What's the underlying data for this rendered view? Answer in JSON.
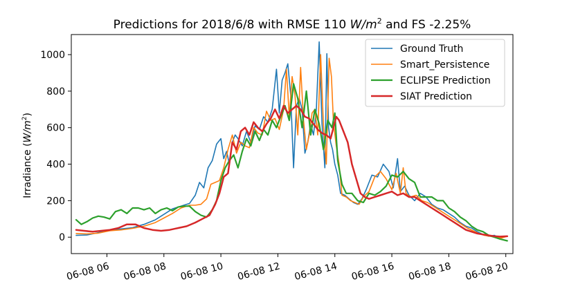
{
  "chart_data": {
    "type": "line",
    "title_parts": [
      "Predictions for 2018/6/8 with RMSE 110 ",
      "W/m",
      "2",
      " and FS -2.25%"
    ],
    "ylabel_parts": [
      "Irradiance (",
      "W/m",
      "2",
      ")"
    ],
    "xlabel": "",
    "x_unit": "hour of day (06-08)",
    "xlim": [
      4.75,
      20.25
    ],
    "ylim": [
      -90,
      1110
    ],
    "xticks": [
      {
        "value": 6,
        "label": "06-08 06"
      },
      {
        "value": 8,
        "label": "06-08 08"
      },
      {
        "value": 10,
        "label": "06-08 10"
      },
      {
        "value": 12,
        "label": "06-08 12"
      },
      {
        "value": 14,
        "label": "06-08 14"
      },
      {
        "value": 16,
        "label": "06-08 16"
      },
      {
        "value": 18,
        "label": "06-08 18"
      },
      {
        "value": 20,
        "label": "06-08 20"
      }
    ],
    "yticks": [
      {
        "value": 0,
        "label": "0"
      },
      {
        "value": 200,
        "label": "200"
      },
      {
        "value": 400,
        "label": "400"
      },
      {
        "value": 600,
        "label": "600"
      },
      {
        "value": 800,
        "label": "800"
      },
      {
        "value": 1000,
        "label": "1000"
      }
    ],
    "grid": false,
    "legend_position": "top-right",
    "series": [
      {
        "name": "Ground Truth",
        "color": "#1f77b4",
        "width": 1.6,
        "x": [
          4.92,
          5.3,
          5.7,
          6.1,
          6.5,
          6.9,
          7.3,
          7.7,
          8.0,
          8.3,
          8.6,
          8.9,
          9.1,
          9.25,
          9.4,
          9.55,
          9.7,
          9.85,
          10.0,
          10.1,
          10.2,
          10.3,
          10.4,
          10.5,
          10.6,
          10.75,
          10.9,
          11.05,
          11.2,
          11.35,
          11.5,
          11.65,
          11.8,
          11.95,
          12.05,
          12.15,
          12.25,
          12.35,
          12.45,
          12.55,
          12.65,
          12.75,
          12.85,
          12.95,
          13.05,
          13.15,
          13.25,
          13.35,
          13.45,
          13.55,
          13.65,
          13.72,
          13.78,
          13.85,
          13.92,
          14.0,
          14.1,
          14.2,
          14.35,
          14.5,
          14.65,
          14.8,
          14.95,
          15.1,
          15.3,
          15.5,
          15.7,
          15.9,
          16.05,
          16.2,
          16.3,
          16.45,
          16.6,
          16.8,
          17.0,
          17.2,
          17.4,
          17.6,
          17.8,
          18.0,
          18.2,
          18.4,
          18.6,
          18.8,
          19.0,
          19.2,
          19.4,
          19.6,
          19.8,
          20.05
        ],
        "y": [
          10,
          12,
          25,
          40,
          45,
          52,
          70,
          95,
          125,
          155,
          170,
          185,
          230,
          300,
          270,
          380,
          420,
          510,
          540,
          430,
          470,
          400,
          520,
          560,
          540,
          500,
          580,
          520,
          610,
          590,
          660,
          630,
          700,
          920,
          680,
          860,
          900,
          950,
          780,
          380,
          720,
          760,
          700,
          460,
          520,
          620,
          560,
          700,
          1070,
          620,
          380,
          1005,
          600,
          520,
          480,
          400,
          340,
          240,
          230,
          210,
          190,
          180,
          210,
          260,
          340,
          330,
          400,
          360,
          270,
          430,
          250,
          280,
          230,
          200,
          240,
          220,
          180,
          160,
          150,
          130,
          110,
          80,
          60,
          50,
          30,
          15,
          5,
          10,
          -5,
          5
        ]
      },
      {
        "name": "Smart_Persistence",
        "color": "#ff7f0e",
        "width": 1.6,
        "x": [
          4.92,
          5.3,
          5.7,
          6.1,
          6.5,
          6.9,
          7.3,
          7.7,
          8.0,
          8.3,
          8.6,
          8.9,
          9.1,
          9.3,
          9.5,
          9.65,
          9.8,
          9.95,
          10.1,
          10.25,
          10.4,
          10.55,
          10.7,
          10.85,
          11.0,
          11.15,
          11.3,
          11.45,
          11.6,
          11.75,
          11.9,
          12.05,
          12.2,
          12.3,
          12.4,
          12.5,
          12.6,
          12.7,
          12.8,
          12.9,
          13.0,
          13.1,
          13.2,
          13.3,
          13.4,
          13.5,
          13.6,
          13.7,
          13.8,
          13.88,
          13.95,
          14.05,
          14.15,
          14.25,
          14.4,
          14.55,
          14.7,
          14.85,
          15.0,
          15.2,
          15.4,
          15.6,
          15.8,
          16.0,
          16.15,
          16.3,
          16.4,
          16.5,
          16.65,
          16.85,
          17.05,
          17.25,
          17.45,
          17.65,
          17.85,
          18.05,
          18.25,
          18.45,
          18.65,
          18.85,
          19.05,
          19.25,
          19.45,
          19.65,
          19.85,
          20.05
        ],
        "y": [
          20,
          18,
          22,
          35,
          40,
          48,
          60,
          80,
          105,
          130,
          160,
          175,
          175,
          180,
          210,
          290,
          300,
          310,
          380,
          480,
          560,
          460,
          520,
          500,
          490,
          600,
          570,
          560,
          690,
          640,
          650,
          590,
          700,
          920,
          660,
          880,
          780,
          560,
          930,
          640,
          480,
          560,
          680,
          700,
          560,
          1000,
          610,
          400,
          980,
          880,
          630,
          500,
          400,
          230,
          220,
          200,
          190,
          180,
          220,
          250,
          330,
          360,
          320,
          260,
          350,
          240,
          380,
          240,
          220,
          230,
          200,
          190,
          170,
          150,
          130,
          110,
          90,
          70,
          50,
          35,
          20,
          10,
          5,
          0,
          -5,
          5
        ]
      },
      {
        "name": "ECLIPSE Prediction",
        "color": "#2ca02c",
        "width": 2.2,
        "x": [
          4.92,
          5.1,
          5.3,
          5.5,
          5.7,
          5.9,
          6.1,
          6.3,
          6.5,
          6.7,
          6.9,
          7.1,
          7.3,
          7.5,
          7.7,
          7.9,
          8.1,
          8.3,
          8.5,
          8.7,
          8.9,
          9.1,
          9.3,
          9.5,
          9.7,
          9.85,
          10.0,
          10.15,
          10.3,
          10.45,
          10.6,
          10.75,
          10.9,
          11.05,
          11.2,
          11.35,
          11.5,
          11.65,
          11.8,
          11.95,
          12.1,
          12.25,
          12.4,
          12.55,
          12.7,
          12.85,
          13.0,
          13.15,
          13.3,
          13.45,
          13.6,
          13.75,
          13.9,
          14.0,
          14.1,
          14.25,
          14.4,
          14.6,
          14.8,
          15.0,
          15.2,
          15.4,
          15.6,
          15.8,
          16.0,
          16.2,
          16.4,
          16.6,
          16.8,
          17.0,
          17.2,
          17.4,
          17.6,
          17.8,
          18.0,
          18.2,
          18.4,
          18.6,
          18.8,
          19.0,
          19.2,
          19.4,
          19.6,
          19.8,
          20.05
        ],
        "y": [
          95,
          70,
          85,
          105,
          115,
          110,
          100,
          140,
          150,
          130,
          160,
          160,
          150,
          160,
          130,
          150,
          160,
          145,
          165,
          170,
          170,
          140,
          120,
          110,
          150,
          200,
          310,
          380,
          420,
          450,
          380,
          470,
          540,
          500,
          580,
          530,
          590,
          560,
          640,
          600,
          660,
          720,
          640,
          840,
          760,
          600,
          800,
          560,
          700,
          620,
          480,
          640,
          600,
          680,
          420,
          290,
          240,
          240,
          200,
          190,
          240,
          230,
          250,
          280,
          340,
          330,
          360,
          320,
          300,
          220,
          220,
          220,
          200,
          200,
          160,
          140,
          110,
          90,
          60,
          40,
          30,
          10,
          0,
          -10,
          -20
        ]
      },
      {
        "name": "SIAT Prediction",
        "color": "#d62728",
        "width": 2.5,
        "x": [
          4.92,
          5.2,
          5.5,
          5.8,
          6.1,
          6.4,
          6.7,
          7.0,
          7.3,
          7.6,
          7.9,
          8.2,
          8.5,
          8.8,
          9.1,
          9.35,
          9.6,
          9.8,
          9.95,
          10.1,
          10.25,
          10.4,
          10.55,
          10.7,
          10.85,
          11.0,
          11.15,
          11.3,
          11.45,
          11.6,
          11.75,
          11.9,
          12.05,
          12.2,
          12.35,
          12.5,
          12.65,
          12.8,
          12.95,
          13.1,
          13.25,
          13.4,
          13.55,
          13.7,
          13.85,
          13.95,
          14.05,
          14.15,
          14.3,
          14.45,
          14.6,
          14.75,
          14.9,
          15.05,
          15.2,
          15.4,
          15.6,
          15.8,
          16.0,
          16.2,
          16.4,
          16.6,
          16.8,
          17.0,
          17.2,
          17.4,
          17.6,
          17.8,
          18.0,
          18.2,
          18.4,
          18.6,
          18.8,
          19.0,
          19.2,
          19.4,
          19.6,
          19.8,
          20.05
        ],
        "y": [
          40,
          35,
          30,
          35,
          40,
          50,
          70,
          70,
          50,
          40,
          35,
          40,
          50,
          60,
          80,
          100,
          120,
          180,
          240,
          330,
          350,
          520,
          480,
          580,
          600,
          560,
          630,
          600,
          580,
          620,
          650,
          700,
          650,
          720,
          680,
          700,
          720,
          700,
          660,
          650,
          620,
          590,
          570,
          560,
          540,
          600,
          660,
          640,
          580,
          520,
          400,
          320,
          240,
          220,
          210,
          220,
          230,
          240,
          250,
          230,
          240,
          220,
          220,
          200,
          180,
          160,
          140,
          120,
          100,
          80,
          60,
          40,
          30,
          20,
          15,
          10,
          5,
          3,
          5
        ]
      }
    ]
  }
}
